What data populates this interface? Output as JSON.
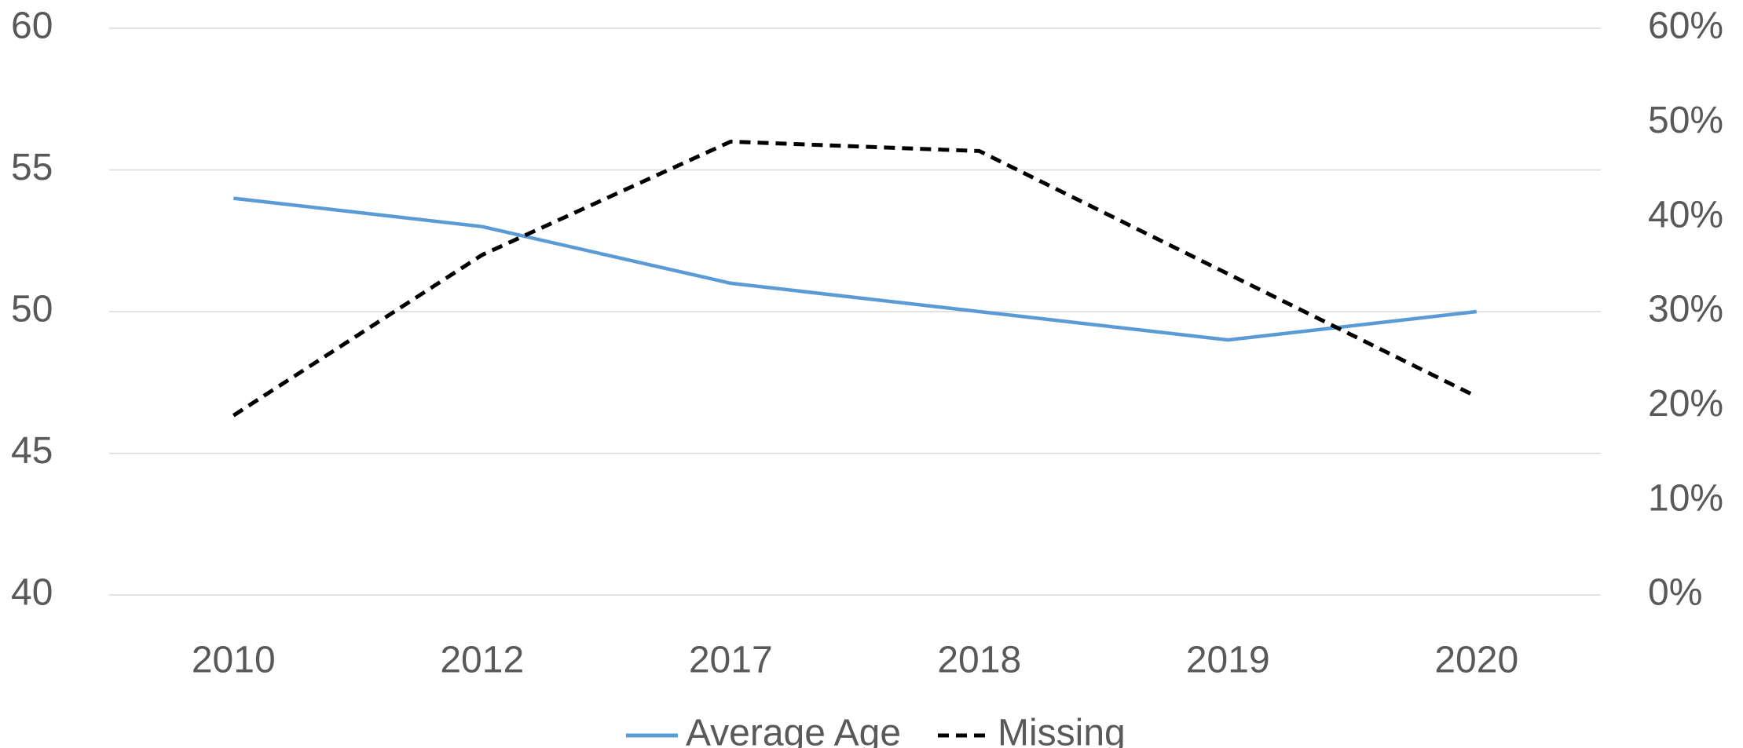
{
  "chart_data": {
    "type": "line",
    "categories": [
      "2010",
      "2012",
      "2017",
      "2018",
      "2019",
      "2020"
    ],
    "series": [
      {
        "name": "Average Age",
        "color": "#5b9bd5",
        "values": [
          54,
          53,
          51,
          50,
          49,
          50
        ]
      },
      {
        "name": "Missing",
        "color": "#000000",
        "dashed": true,
        "axis": "y2",
        "values": [
          19,
          36,
          48,
          47,
          34,
          21
        ]
      }
    ],
    "ylim": [
      40,
      60
    ],
    "yticks": [
      40,
      45,
      50,
      55,
      60
    ],
    "y2lim": [
      0,
      60
    ],
    "y2ticks": [
      {
        "value": 0,
        "label": "0%"
      },
      {
        "value": 10,
        "label": "10%"
      },
      {
        "value": 20,
        "label": "20%"
      },
      {
        "value": 30,
        "label": "30%"
      },
      {
        "value": 40,
        "label": "40%"
      },
      {
        "value": 50,
        "label": "50%"
      },
      {
        "value": 60,
        "label": "60%"
      }
    ],
    "grid": true,
    "legend": "bottom"
  }
}
